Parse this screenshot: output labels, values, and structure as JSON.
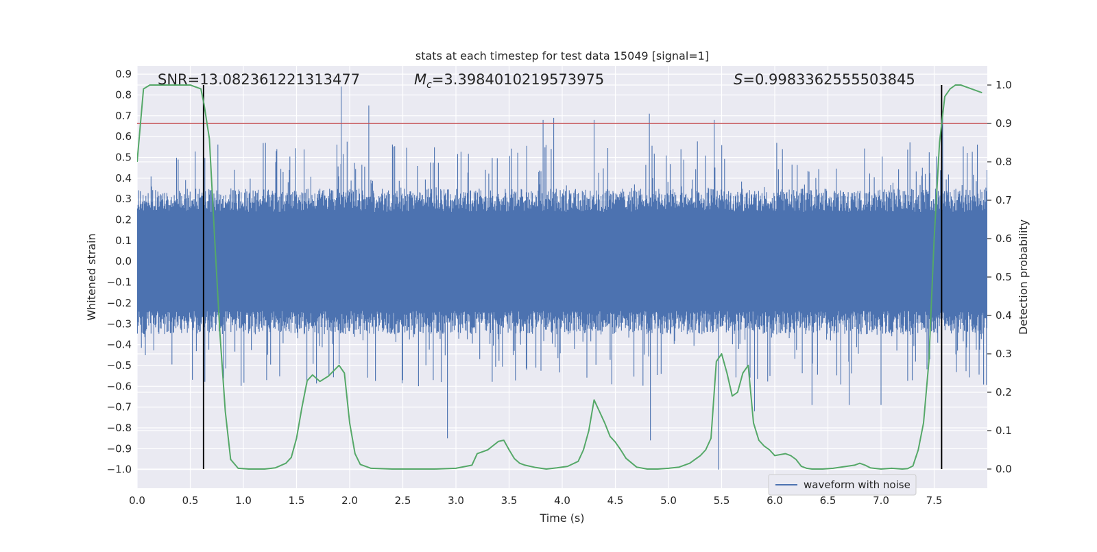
{
  "chart_data": {
    "type": "line",
    "title": "stats at each timestep for test data 15049 [signal=1]",
    "xlabel": "Time (s)",
    "ylabel": "Whitened strain",
    "y2label": "Detection probability",
    "xlim": [
      0.0,
      8.0
    ],
    "ylim": [
      -1.09,
      0.94
    ],
    "y2lim": [
      -0.05,
      1.05
    ],
    "xticks": [
      "0.0",
      "0.5",
      "1.0",
      "1.5",
      "2.0",
      "2.5",
      "3.0",
      "3.5",
      "4.0",
      "4.5",
      "5.0",
      "5.5",
      "6.0",
      "6.5",
      "7.0",
      "7.5"
    ],
    "yticks": [
      "0.9",
      "0.8",
      "0.7",
      "0.6",
      "0.5",
      "0.4",
      "0.3",
      "0.2",
      "0.1",
      "0.0",
      "−0.1",
      "−0.2",
      "−0.3",
      "−0.4",
      "−0.5",
      "−0.6",
      "−0.7",
      "−0.8",
      "−0.9",
      "−1.0"
    ],
    "y2ticks": [
      "1.0",
      "0.9",
      "0.8",
      "0.7",
      "0.6",
      "0.5",
      "0.4",
      "0.3",
      "0.2",
      "0.1",
      "0.0"
    ],
    "annotations": {
      "snr": "SNR=13.082361221313477",
      "mc_symbol": "M",
      "mc_sub": "c",
      "mc_value": "=3.3984010219573975",
      "s_symbol": "S",
      "s_value": "=0.9983362555503845"
    },
    "threshold": {
      "y2": 0.9,
      "color": "#c44e52"
    },
    "vlines": {
      "x": [
        0.625,
        7.57
      ],
      "y2_range": [
        0.0,
        1.0
      ],
      "color": "#000000"
    },
    "legend": {
      "label": "waveform with noise",
      "location": "lower right"
    },
    "colors": {
      "waveform": "#4c72b0",
      "probability": "#55a868",
      "plot_bg": "#eaeaf2",
      "grid": "#ffffff"
    },
    "series": [
      {
        "name": "waveform with noise",
        "axis": "left",
        "description": "dense whitened strain noise: core band about -0.28 to 0.28 with spikes up to 0.84 and down to -1.0",
        "core_amplitude": 0.28,
        "spikes": [
          {
            "x": 1.92,
            "y": 0.84
          },
          {
            "x": 2.18,
            "y": 0.75
          },
          {
            "x": 3.82,
            "y": 0.68
          },
          {
            "x": 3.92,
            "y": 0.69
          },
          {
            "x": 4.3,
            "y": 0.68
          },
          {
            "x": 4.82,
            "y": 0.71
          },
          {
            "x": 5.43,
            "y": 0.68
          },
          {
            "x": 7.58,
            "y": 0.72
          },
          {
            "x": 2.92,
            "y": -0.85
          },
          {
            "x": 4.83,
            "y": -0.86
          },
          {
            "x": 5.47,
            "y": -1.0
          },
          {
            "x": 5.81,
            "y": -0.72
          },
          {
            "x": 6.35,
            "y": -0.69
          },
          {
            "x": 6.7,
            "y": -0.69
          },
          {
            "x": 7.0,
            "y": -0.69
          }
        ]
      },
      {
        "name": "detection probability",
        "axis": "right",
        "x": [
          0.0,
          0.06,
          0.12,
          0.2,
          0.3,
          0.4,
          0.5,
          0.55,
          0.6,
          0.63,
          0.68,
          0.73,
          0.78,
          0.83,
          0.88,
          0.95,
          1.05,
          1.2,
          1.3,
          1.4,
          1.45,
          1.5,
          1.55,
          1.6,
          1.65,
          1.72,
          1.8,
          1.9,
          1.95,
          2.0,
          2.05,
          2.1,
          2.2,
          2.4,
          2.6,
          2.8,
          3.0,
          3.15,
          3.2,
          3.25,
          3.3,
          3.4,
          3.45,
          3.5,
          3.55,
          3.6,
          3.65,
          3.75,
          3.85,
          3.95,
          4.05,
          4.15,
          4.2,
          4.25,
          4.3,
          4.35,
          4.4,
          4.45,
          4.5,
          4.55,
          4.6,
          4.7,
          4.8,
          4.9,
          5.0,
          5.1,
          5.2,
          5.3,
          5.35,
          5.4,
          5.45,
          5.5,
          5.55,
          5.6,
          5.65,
          5.7,
          5.75,
          5.8,
          5.85,
          5.9,
          5.95,
          6.0,
          6.1,
          6.15,
          6.2,
          6.25,
          6.3,
          6.35,
          6.45,
          6.55,
          6.65,
          6.75,
          6.8,
          6.85,
          6.9,
          7.0,
          7.1,
          7.2,
          7.25,
          7.3,
          7.35,
          7.4,
          7.45,
          7.5,
          7.55,
          7.6,
          7.65,
          7.7,
          7.75,
          7.85,
          7.95
        ],
        "y": [
          0.8,
          0.99,
          1.0,
          1.0,
          1.0,
          1.0,
          1.0,
          0.995,
          0.99,
          0.95,
          0.86,
          0.6,
          0.35,
          0.15,
          0.025,
          0.002,
          0.0,
          0.0,
          0.003,
          0.015,
          0.03,
          0.08,
          0.16,
          0.23,
          0.245,
          0.228,
          0.242,
          0.27,
          0.25,
          0.12,
          0.04,
          0.012,
          0.002,
          0.0,
          0.0,
          0.0,
          0.002,
          0.01,
          0.04,
          0.045,
          0.05,
          0.072,
          0.075,
          0.05,
          0.027,
          0.015,
          0.01,
          0.004,
          0.0,
          0.003,
          0.007,
          0.02,
          0.05,
          0.1,
          0.18,
          0.15,
          0.12,
          0.085,
          0.07,
          0.05,
          0.028,
          0.005,
          0.0,
          0.0,
          0.002,
          0.005,
          0.015,
          0.035,
          0.05,
          0.08,
          0.28,
          0.3,
          0.25,
          0.19,
          0.2,
          0.25,
          0.27,
          0.12,
          0.075,
          0.06,
          0.05,
          0.035,
          0.04,
          0.035,
          0.025,
          0.007,
          0.002,
          0.0,
          0.0,
          0.002,
          0.006,
          0.01,
          0.015,
          0.01,
          0.003,
          0.0,
          0.002,
          0.0,
          0.001,
          0.008,
          0.05,
          0.12,
          0.28,
          0.6,
          0.85,
          0.97,
          0.99,
          1.0,
          1.0,
          0.99,
          0.98
        ]
      }
    ]
  }
}
